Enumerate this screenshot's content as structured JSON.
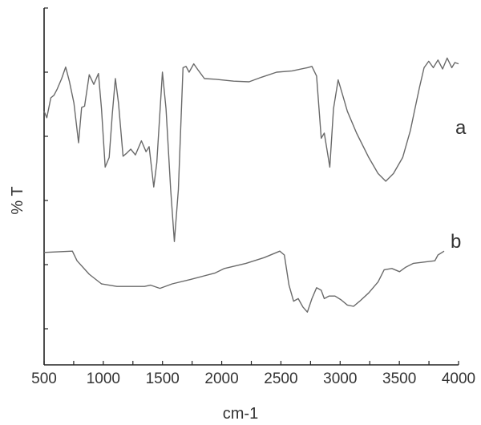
{
  "chart_data": {
    "type": "line",
    "title": "",
    "xlabel": "cm-1",
    "ylabel": "% T",
    "xlim": [
      500,
      4000
    ],
    "ylim": [
      -0.5625,
      5
    ],
    "x_ticks": [
      500,
      1000,
      1500,
      2000,
      2500,
      3000,
      3500,
      4000
    ],
    "x_minor_step": 250,
    "y_ticks": [
      0,
      1,
      2,
      3,
      4,
      5
    ],
    "y_tick_labels_shown": false,
    "grid": false,
    "line_color": "#6a6a6a",
    "series": [
      {
        "name": "a",
        "x": [
          500,
          523,
          557,
          583,
          609,
          648,
          682,
          713,
          752,
          791,
          817,
          842,
          881,
          920,
          959,
          985,
          1016,
          1050,
          1076,
          1102,
          1128,
          1167,
          1193,
          1232,
          1271,
          1322,
          1361,
          1387,
          1426,
          1452,
          1499,
          1530,
          1569,
          1600,
          1634,
          1673,
          1699,
          1725,
          1764,
          1802,
          1854,
          1945,
          2101,
          2231,
          2334,
          2464,
          2594,
          2723,
          2762,
          2801,
          2840,
          2866,
          2892,
          2913,
          2944,
          2983,
          3022,
          3061,
          3139,
          3242,
          3320,
          3385,
          3450,
          3528,
          3593,
          3632,
          3671,
          3709,
          3748,
          3787,
          3826,
          3865,
          3904,
          3943,
          3969,
          4000
        ],
        "y": [
          3.39,
          3.29,
          3.6,
          3.64,
          3.73,
          3.9,
          4.08,
          3.86,
          3.52,
          2.9,
          3.45,
          3.47,
          3.96,
          3.81,
          3.98,
          3.43,
          2.52,
          2.67,
          3.35,
          3.9,
          3.52,
          2.69,
          2.73,
          2.8,
          2.71,
          2.93,
          2.76,
          2.84,
          2.21,
          2.59,
          4.0,
          3.43,
          2.17,
          1.36,
          2.17,
          4.07,
          4.09,
          4.0,
          4.13,
          4.03,
          3.9,
          3.89,
          3.86,
          3.85,
          3.92,
          4.0,
          4.02,
          4.07,
          4.09,
          3.94,
          2.97,
          3.05,
          2.76,
          2.52,
          3.43,
          3.88,
          3.64,
          3.39,
          3.05,
          2.67,
          2.42,
          2.3,
          2.42,
          2.67,
          3.09,
          3.43,
          3.77,
          4.07,
          4.17,
          4.07,
          4.19,
          4.05,
          4.22,
          4.07,
          4.15,
          4.13
        ]
      },
      {
        "name": "b",
        "x": [
          500,
          739,
          778,
          881,
          985,
          1115,
          1348,
          1400,
          1478,
          1582,
          1738,
          1945,
          2023,
          2205,
          2360,
          2490,
          2529,
          2568,
          2607,
          2646,
          2685,
          2723,
          2762,
          2801,
          2840,
          2866,
          2905,
          2957,
          3009,
          3061,
          3113,
          3165,
          3242,
          3320,
          3372,
          3437,
          3502,
          3554,
          3619,
          3709,
          3800,
          3826,
          3878
        ],
        "y": [
          1.19,
          1.21,
          1.06,
          0.85,
          0.7,
          0.66,
          0.66,
          0.68,
          0.63,
          0.7,
          0.77,
          0.87,
          0.94,
          1.02,
          1.11,
          1.21,
          1.15,
          0.68,
          0.43,
          0.47,
          0.34,
          0.26,
          0.47,
          0.64,
          0.6,
          0.47,
          0.51,
          0.51,
          0.45,
          0.37,
          0.35,
          0.43,
          0.56,
          0.73,
          0.92,
          0.94,
          0.89,
          0.96,
          1.02,
          1.04,
          1.06,
          1.15,
          1.21
        ]
      }
    ]
  }
}
